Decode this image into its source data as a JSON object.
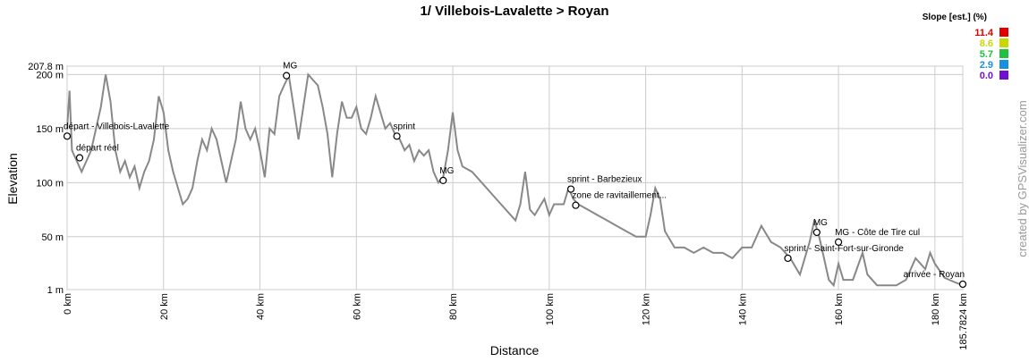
{
  "chart_data": {
    "type": "line",
    "title": "1/ Villebois-Lavalette > Royan",
    "xlabel": "Distance",
    "ylabel": "Elevation",
    "credit": "created by GPSVisualizer.com",
    "color": "#888888",
    "x": [
      0,
      0.5,
      1,
      2,
      3,
      4,
      5,
      6,
      7,
      8,
      9,
      10,
      11,
      12,
      13,
      14,
      15,
      16,
      17,
      18,
      19,
      20,
      21,
      22,
      23,
      24,
      25,
      26,
      27,
      28,
      29,
      30,
      31,
      32,
      33,
      34,
      35,
      36,
      37,
      38,
      39,
      40,
      41,
      42,
      43,
      44,
      45,
      46,
      47,
      48,
      49,
      50,
      51,
      52,
      53,
      54,
      55,
      56,
      57,
      58,
      59,
      60,
      61,
      62,
      63,
      64,
      65,
      66,
      67,
      68,
      69,
      70,
      71,
      72,
      73,
      74,
      75,
      76,
      77,
      78,
      79,
      80,
      81,
      82,
      84,
      86,
      88,
      90,
      92,
      93,
      94,
      95,
      96,
      97,
      99,
      100,
      101,
      103,
      104,
      105,
      106,
      108,
      110,
      112,
      114,
      116,
      118,
      120,
      121,
      122,
      123,
      124,
      126,
      128,
      130,
      132,
      134,
      136,
      138,
      140,
      142,
      144,
      146,
      148,
      150,
      152,
      153,
      154,
      155,
      156,
      157,
      158,
      159,
      160,
      161,
      163,
      165,
      166,
      168,
      170,
      172,
      174,
      176,
      178,
      179,
      180,
      182,
      184,
      185.7824
    ],
    "values": [
      150,
      185,
      130,
      120,
      110,
      120,
      130,
      150,
      170,
      200,
      175,
      130,
      110,
      120,
      105,
      115,
      95,
      110,
      120,
      140,
      180,
      165,
      130,
      110,
      95,
      80,
      85,
      95,
      120,
      140,
      130,
      150,
      140,
      120,
      100,
      120,
      140,
      175,
      150,
      140,
      150,
      130,
      105,
      150,
      145,
      180,
      190,
      199,
      170,
      140,
      170,
      200,
      195,
      190,
      170,
      145,
      105,
      145,
      175,
      160,
      160,
      170,
      150,
      145,
      160,
      180,
      165,
      150,
      155,
      145,
      140,
      130,
      135,
      120,
      130,
      125,
      130,
      110,
      100,
      105,
      130,
      165,
      130,
      115,
      110,
      100,
      90,
      80,
      70,
      65,
      80,
      110,
      75,
      70,
      85,
      70,
      80,
      80,
      95,
      85,
      80,
      75,
      70,
      65,
      60,
      55,
      50,
      50,
      70,
      95,
      85,
      55,
      40,
      40,
      35,
      40,
      35,
      35,
      30,
      40,
      40,
      60,
      45,
      40,
      30,
      15,
      30,
      45,
      65,
      50,
      30,
      10,
      5,
      25,
      10,
      10,
      35,
      15,
      5,
      5,
      5,
      10,
      30,
      20,
      35,
      25,
      12,
      8,
      5
    ],
    "xlim": [
      0,
      185.7824
    ],
    "ylim": [
      1,
      207.8
    ],
    "xticks": [
      {
        "value": 0,
        "label": "0 km"
      },
      {
        "value": 20,
        "label": "20 km"
      },
      {
        "value": 40,
        "label": "40 km"
      },
      {
        "value": 60,
        "label": "60 km"
      },
      {
        "value": 80,
        "label": "80 km"
      },
      {
        "value": 100,
        "label": "100 km"
      },
      {
        "value": 120,
        "label": "120 km"
      },
      {
        "value": 140,
        "label": "140 km"
      },
      {
        "value": 160,
        "label": "160 km"
      },
      {
        "value": 180,
        "label": "180 km"
      },
      {
        "value": 185.7824,
        "label": "185.7824 km"
      }
    ],
    "yticks": [
      {
        "value": 1,
        "label": "1 m"
      },
      {
        "value": 50,
        "label": "50 m"
      },
      {
        "value": 100,
        "label": "100 m"
      },
      {
        "value": 150,
        "label": "150 m"
      },
      {
        "value": 200,
        "label": "200 m"
      },
      {
        "value": 207.8,
        "label": "207.8 m"
      }
    ],
    "grid": true,
    "annotations": [
      {
        "label": "départ - Villebois-Lavalette",
        "x": 0,
        "y": 143
      },
      {
        "label": "départ réel",
        "x": 2.6,
        "y": 123
      },
      {
        "label": "MG",
        "x": 45.5,
        "y": 199
      },
      {
        "label": "sprint",
        "x": 68.4,
        "y": 143
      },
      {
        "label": "MG",
        "x": 78,
        "y": 102
      },
      {
        "label": "sprint - Barbezieux",
        "x": 104.5,
        "y": 94
      },
      {
        "label": "zone de ravitaillement...",
        "x": 105.5,
        "y": 79
      },
      {
        "label": "sprint - Saint-Fort-sur-Gironde",
        "x": 149.5,
        "y": 30
      },
      {
        "label": "MG",
        "x": 155.5,
        "y": 54
      },
      {
        "label": "MG - Côte de Tire cul",
        "x": 160,
        "y": 45
      },
      {
        "label": "arrivée - Royan",
        "x": 185.7824,
        "y": 6
      }
    ],
    "legend": {
      "title": "Slope [est.] (%)",
      "position": "upper right",
      "entries": [
        {
          "value": 11.4,
          "color": "#e00000"
        },
        {
          "value": 8.6,
          "color": "#c8d800"
        },
        {
          "value": 5.7,
          "color": "#20c040"
        },
        {
          "value": 2.9,
          "color": "#1890e0"
        },
        {
          "value": {
            "value": 0,
            "label": "0.0"
          },
          "color": "#7010d0"
        }
      ]
    }
  }
}
